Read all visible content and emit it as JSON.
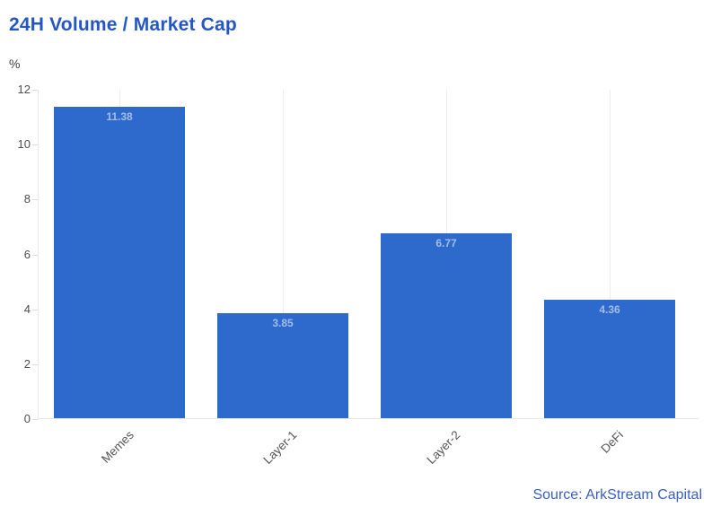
{
  "chart_data": {
    "type": "bar",
    "title": "24H Volume / Market Cap",
    "ylabel": "%",
    "categories": [
      "Memes",
      "Layer-1",
      "Layer-2",
      "DeFi"
    ],
    "values": [
      11.38,
      3.85,
      6.77,
      4.36
    ],
    "value_labels": [
      "11.38",
      "3.85",
      "6.77",
      "4.36"
    ],
    "ylim": [
      0,
      12
    ],
    "yticks": [
      0,
      2,
      4,
      6,
      8,
      10,
      12
    ],
    "grid": "vertical-lines-at-category-centers",
    "legend": "none",
    "source": "Source: ArkStream Capital",
    "colors": {
      "title": "#2457c5",
      "bar": "#2e6acc",
      "bar_value_label": "#a3bde8",
      "axis_label": "#4d4d4d",
      "category_label": "#555555",
      "gridline": "#ededed",
      "axis_line": "#e7e7e7",
      "source_text": "#3a60c5",
      "background": "#ffffff"
    }
  }
}
